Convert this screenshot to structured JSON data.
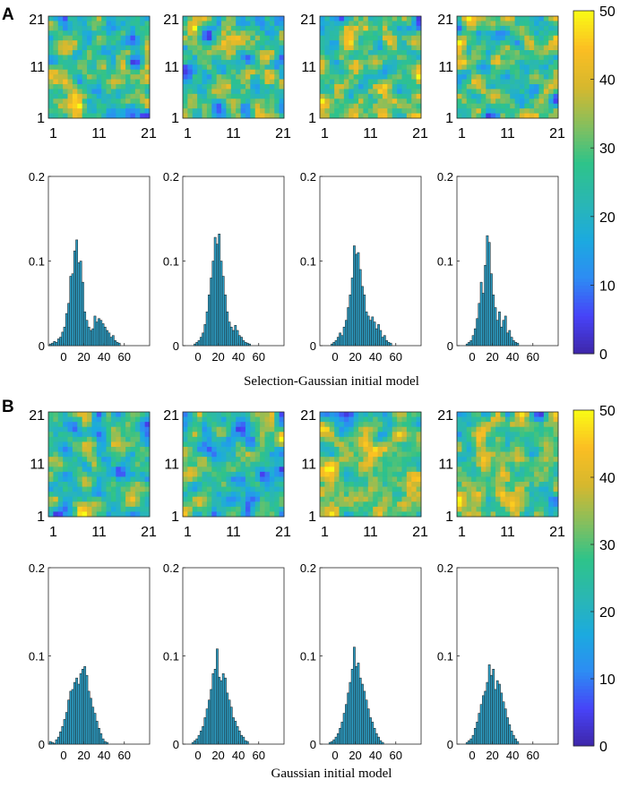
{
  "chart_data": {
    "type": "heatmap",
    "panels": [
      {
        "label": "A",
        "caption": "Selection-Gaussian initial model",
        "maps": {
          "grid_size": 21,
          "xticks": [
            "1",
            "11",
            "21"
          ],
          "yticks": [
            "1",
            "11",
            "21"
          ],
          "seeds": [
            11,
            23,
            37,
            51
          ]
        },
        "histograms": [
          {
            "values": [
              0.002,
              0.003,
              0.005,
              0.004,
              0.008,
              0.01,
              0.016,
              0.022,
              0.038,
              0.05,
              0.082,
              0.085,
              0.112,
              0.125,
              0.098,
              0.1,
              0.075,
              0.04,
              0.03,
              0.022,
              0.018,
              0.02,
              0.035,
              0.028,
              0.032,
              0.03,
              0.026,
              0.022,
              0.018,
              0.015,
              0.01,
              0.012,
              0.006,
              0.004,
              0.003
            ]
          },
          {
            "values": [
              0.002,
              0.004,
              0.006,
              0.01,
              0.015,
              0.025,
              0.04,
              0.06,
              0.08,
              0.1,
              0.128,
              0.12,
              0.132,
              0.1,
              0.082,
              0.06,
              0.04,
              0.028,
              0.022,
              0.018,
              0.024,
              0.018,
              0.012,
              0.01,
              0.006,
              0.004,
              0.003,
              0.002
            ]
          },
          {
            "values": [
              0.002,
              0.004,
              0.006,
              0.01,
              0.015,
              0.012,
              0.022,
              0.03,
              0.045,
              0.06,
              0.08,
              0.118,
              0.108,
              0.11,
              0.09,
              0.07,
              0.06,
              0.04,
              0.035,
              0.03,
              0.034,
              0.028,
              0.02,
              0.025,
              0.018,
              0.01,
              0.012,
              0.006,
              0.004,
              0.003
            ]
          },
          {
            "values": [
              0.002,
              0.004,
              0.006,
              0.012,
              0.02,
              0.032,
              0.05,
              0.075,
              0.062,
              0.095,
              0.13,
              0.122,
              0.085,
              0.06,
              0.045,
              0.03,
              0.04,
              0.022,
              0.03,
              0.035,
              0.015,
              0.018,
              0.01,
              0.006,
              0.004,
              0.003
            ]
          }
        ],
        "hist_start": [
          -14,
          -4,
          -4,
          -6
        ]
      },
      {
        "label": "B",
        "caption": "Gaussian initial model",
        "maps": {
          "grid_size": 21,
          "xticks": [
            "1",
            "11",
            "21"
          ],
          "yticks": [
            "1",
            "11",
            "21"
          ],
          "seeds": [
            71,
            89,
            97,
            113
          ]
        },
        "histograms": [
          {
            "values": [
              0.003,
              0.002,
              0.001,
              0.005,
              0.008,
              0.014,
              0.02,
              0.028,
              0.036,
              0.05,
              0.06,
              0.062,
              0.07,
              0.075,
              0.068,
              0.08,
              0.085,
              0.088,
              0.078,
              0.06,
              0.052,
              0.042,
              0.035,
              0.026,
              0.018,
              0.012,
              0.006,
              0.003,
              0.002
            ]
          },
          {
            "values": [
              0.002,
              0.004,
              0.006,
              0.01,
              0.015,
              0.02,
              0.03,
              0.04,
              0.05,
              0.062,
              0.08,
              0.085,
              0.108,
              0.076,
              0.072,
              0.08,
              0.075,
              0.058,
              0.05,
              0.042,
              0.03,
              0.026,
              0.02,
              0.015,
              0.01,
              0.008,
              0.004,
              0.003
            ]
          },
          {
            "values": [
              0.002,
              0.003,
              0.005,
              0.008,
              0.012,
              0.018,
              0.025,
              0.035,
              0.045,
              0.058,
              0.07,
              0.085,
              0.11,
              0.088,
              0.092,
              0.075,
              0.068,
              0.06,
              0.05,
              0.04,
              0.03,
              0.025,
              0.018,
              0.012,
              0.008,
              0.004,
              0.002
            ]
          },
          {
            "values": [
              0.002,
              0.004,
              0.006,
              0.01,
              0.018,
              0.025,
              0.035,
              0.045,
              0.055,
              0.06,
              0.07,
              0.09,
              0.078,
              0.085,
              0.062,
              0.072,
              0.068,
              0.058,
              0.048,
              0.04,
              0.03,
              0.022,
              0.015,
              0.01,
              0.006,
              0.003
            ]
          }
        ],
        "hist_start": [
          -14,
          -6,
          -6,
          -6
        ]
      }
    ],
    "histogram_axes": {
      "xticks": [
        0,
        20,
        40,
        60
      ],
      "yticks": [
        0,
        0.1,
        0.2
      ],
      "ytick_labels": [
        "0",
        "0.1",
        "0.2"
      ],
      "xlim": [
        -15,
        85
      ],
      "ylim": [
        0,
        0.2
      ],
      "bin_width": 2
    },
    "colorbar": {
      "range": [
        0,
        50
      ],
      "ticks": [
        0,
        10,
        20,
        30,
        40,
        50
      ],
      "colormap": "parula",
      "stops": [
        "#3e26a8",
        "#4743f8",
        "#2d8cf3",
        "#1caadf",
        "#2ab7b2",
        "#2ec38a",
        "#86bf5d",
        "#d6b82e",
        "#fbbe23",
        "#f9fb15"
      ]
    },
    "bar_color": "#2c9ec5"
  }
}
